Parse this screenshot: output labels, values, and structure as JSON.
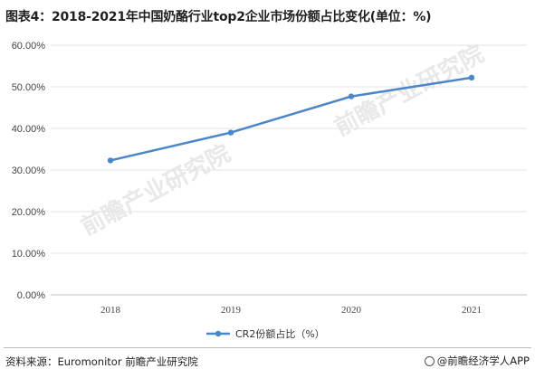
{
  "header": {
    "title": "图表4：2018-2021年中国奶酪行业top2企业市场份额占比变化(单位：%)"
  },
  "chart_data": {
    "type": "line",
    "categories": [
      "2018",
      "2019",
      "2020",
      "2021"
    ],
    "series": [
      {
        "name": "CR2份额占比（%）",
        "values": [
          32.3,
          39.0,
          47.7,
          52.2
        ],
        "color": "#4a86cb"
      }
    ],
    "yticks": [
      "0.00%",
      "10.00%",
      "20.00%",
      "30.00%",
      "40.00%",
      "50.00%",
      "60.00%"
    ],
    "ylim": [
      0,
      60
    ],
    "grid": true,
    "legend_position": "bottom-center"
  },
  "watermark": {
    "text": "前瞻产业研究院"
  },
  "footer": {
    "source": "资料来源：Euromonitor 前瞻产业研究院",
    "brand": "@前瞻经济学人APP"
  }
}
